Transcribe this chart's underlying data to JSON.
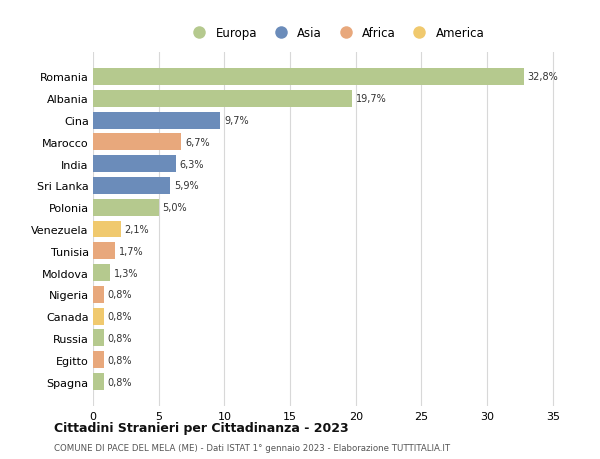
{
  "countries": [
    "Romania",
    "Albania",
    "Cina",
    "Marocco",
    "India",
    "Sri Lanka",
    "Polonia",
    "Venezuela",
    "Tunisia",
    "Moldova",
    "Nigeria",
    "Canada",
    "Russia",
    "Egitto",
    "Spagna"
  ],
  "values": [
    32.8,
    19.7,
    9.7,
    6.7,
    6.3,
    5.9,
    5.0,
    2.1,
    1.7,
    1.3,
    0.8,
    0.8,
    0.8,
    0.8,
    0.8
  ],
  "labels": [
    "32,8%",
    "19,7%",
    "9,7%",
    "6,7%",
    "6,3%",
    "5,9%",
    "5,0%",
    "2,1%",
    "1,7%",
    "1,3%",
    "0,8%",
    "0,8%",
    "0,8%",
    "0,8%",
    "0,8%"
  ],
  "continents": [
    "Europa",
    "Europa",
    "Asia",
    "Africa",
    "Asia",
    "Asia",
    "Europa",
    "America",
    "Africa",
    "Europa",
    "Africa",
    "America",
    "Europa",
    "Africa",
    "Europa"
  ],
  "colors": {
    "Europa": "#b5c98e",
    "Asia": "#6b8cba",
    "Africa": "#e8a87c",
    "America": "#f0c96e"
  },
  "legend_order": [
    "Europa",
    "Asia",
    "Africa",
    "America"
  ],
  "title": "Cittadini Stranieri per Cittadinanza - 2023",
  "subtitle": "COMUNE DI PACE DEL MELA (ME) - Dati ISTAT 1° gennaio 2023 - Elaborazione TUTTITALIA.IT",
  "xlim": [
    0,
    37
  ],
  "xticks": [
    0,
    5,
    10,
    15,
    20,
    25,
    30,
    35
  ],
  "background_color": "#ffffff",
  "grid_color": "#d8d8d8"
}
